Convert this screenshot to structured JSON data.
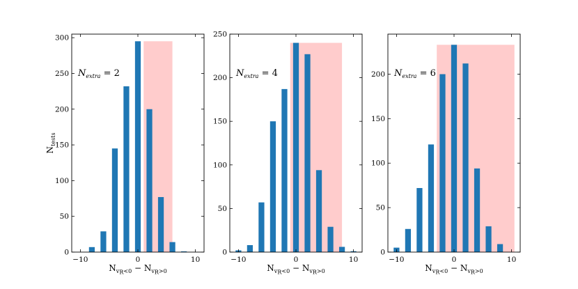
{
  "chart_data": [
    {
      "type": "bar",
      "annotation": {
        "var": "N",
        "sub": "extra",
        "rest": " = 2"
      },
      "ylabel": {
        "main": "N",
        "sub": "tests"
      },
      "xlabel": {
        "a": "N",
        "a_sub": "v",
        "a_sub2": "R",
        "a_rel": "<0",
        "minus": " − ",
        "b": "N",
        "b_sub": "v",
        "b_sub2": "R",
        "b_rel": ">0"
      },
      "xlim": [
        -11.5,
        11.5
      ],
      "ylim": [
        0,
        305
      ],
      "xticks": [
        -10,
        0,
        10
      ],
      "yticks": [
        0,
        50,
        100,
        150,
        200,
        250,
        300
      ],
      "bar_width": 1.0,
      "bar_color": "#1f77b4",
      "x": [
        -8,
        -6,
        -4,
        -2,
        0,
        2,
        4,
        6,
        8
      ],
      "values": [
        7,
        29,
        145,
        232,
        295,
        200,
        77,
        14,
        1
      ],
      "shaded_region": {
        "x": [
          1,
          6
        ],
        "y": [
          0,
          295
        ],
        "color": "#ff9999"
      }
    },
    {
      "type": "bar",
      "annotation": {
        "var": "N",
        "sub": "extra",
        "rest": " = 4"
      },
      "ylabel": null,
      "xlabel": {
        "a": "N",
        "a_sub": "v",
        "a_sub2": "R",
        "a_rel": "<0",
        "minus": " − ",
        "b": "N",
        "b_sub": "v",
        "b_sub2": "R",
        "b_rel": ">0"
      },
      "xlim": [
        -11.5,
        11.5
      ],
      "ylim": [
        0,
        250
      ],
      "xticks": [
        -10,
        0,
        10
      ],
      "yticks": [
        0,
        50,
        100,
        150,
        200,
        250
      ],
      "bar_width": 1.0,
      "bar_color": "#1f77b4",
      "x": [
        -10,
        -8,
        -6,
        -4,
        -2,
        0,
        2,
        4,
        6,
        8,
        10
      ],
      "values": [
        2,
        8,
        57,
        150,
        187,
        240,
        227,
        94,
        29,
        6,
        1
      ],
      "shaded_region": {
        "x": [
          -1,
          8
        ],
        "y": [
          0,
          240
        ],
        "color": "#ff9999"
      }
    },
    {
      "type": "bar",
      "annotation": {
        "var": "N",
        "sub": "extra",
        "rest": " = 6"
      },
      "ylabel": null,
      "xlabel": {
        "a": "N",
        "a_sub": "v",
        "a_sub2": "R",
        "a_rel": "<0",
        "minus": " − ",
        "b": "N",
        "b_sub": "v",
        "b_sub2": "R",
        "b_rel": ">0"
      },
      "xlim": [
        -11.5,
        11.5
      ],
      "ylim": [
        0,
        245
      ],
      "xticks": [
        -10,
        0,
        10
      ],
      "yticks": [
        0,
        50,
        100,
        150,
        200
      ],
      "bar_width": 1.0,
      "bar_color": "#1f77b4",
      "x": [
        -10,
        -8,
        -6,
        -4,
        -2,
        0,
        2,
        4,
        6,
        8
      ],
      "values": [
        5,
        26,
        72,
        121,
        200,
        233,
        212,
        94,
        29,
        9
      ],
      "shaded_region": {
        "x": [
          -3,
          10.5
        ],
        "y": [
          0,
          233
        ],
        "color": "#ff9999"
      }
    }
  ]
}
